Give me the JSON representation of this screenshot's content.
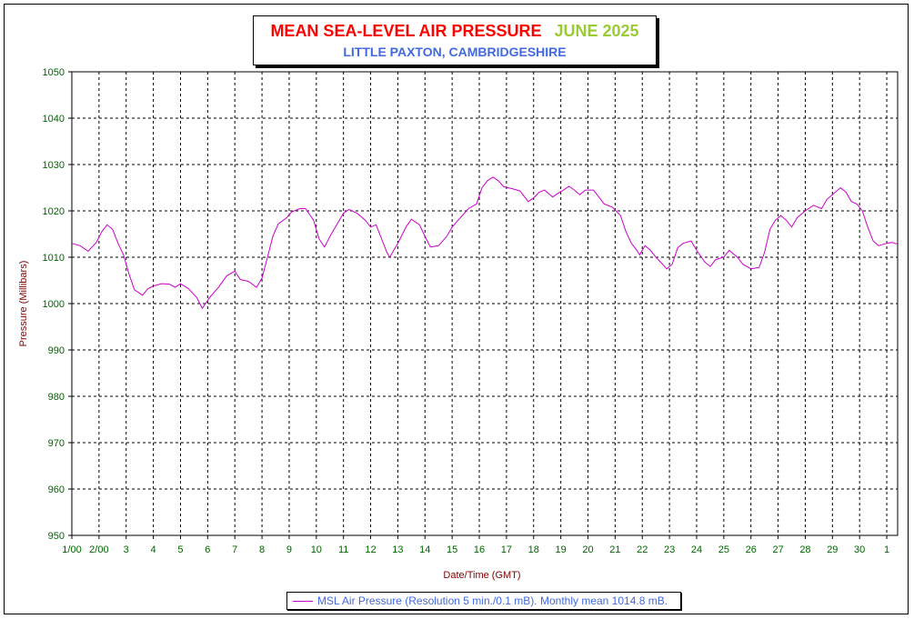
{
  "chart_data": {
    "type": "line",
    "title": "MEAN SEA-LEVEL AIR PRESSURE",
    "title_period": "JUNE 2025",
    "subtitle": "LITTLE PAXTON, CAMBRIDGESHIRE",
    "xlabel": "Date/Time (GMT)",
    "ylabel": "Pressure (Millibars)",
    "ylim": [
      950,
      1050
    ],
    "yticks": [
      950,
      960,
      970,
      980,
      990,
      1000,
      1010,
      1020,
      1030,
      1040,
      1050
    ],
    "xlim": [
      0,
      30.4
    ],
    "xticks": [
      {
        "x": 0,
        "label": "1/00"
      },
      {
        "x": 1,
        "label": "2/00"
      },
      {
        "x": 2,
        "label": "3"
      },
      {
        "x": 3,
        "label": "4"
      },
      {
        "x": 4,
        "label": "5"
      },
      {
        "x": 5,
        "label": "6"
      },
      {
        "x": 6,
        "label": "7"
      },
      {
        "x": 7,
        "label": "8"
      },
      {
        "x": 8,
        "label": "9"
      },
      {
        "x": 9,
        "label": "10"
      },
      {
        "x": 10,
        "label": "11"
      },
      {
        "x": 11,
        "label": "12"
      },
      {
        "x": 12,
        "label": "13"
      },
      {
        "x": 13,
        "label": "14"
      },
      {
        "x": 14,
        "label": "15"
      },
      {
        "x": 15,
        "label": "16"
      },
      {
        "x": 16,
        "label": "17"
      },
      {
        "x": 17,
        "label": "18"
      },
      {
        "x": 18,
        "label": "19"
      },
      {
        "x": 19,
        "label": "20"
      },
      {
        "x": 20,
        "label": "21"
      },
      {
        "x": 21,
        "label": "22"
      },
      {
        "x": 22,
        "label": "23"
      },
      {
        "x": 23,
        "label": "24"
      },
      {
        "x": 24,
        "label": "25"
      },
      {
        "x": 25,
        "label": "26"
      },
      {
        "x": 26,
        "label": "27"
      },
      {
        "x": 27,
        "label": "28"
      },
      {
        "x": 28,
        "label": "29"
      },
      {
        "x": 29,
        "label": "30"
      },
      {
        "x": 30,
        "label": "1"
      }
    ],
    "grid": true,
    "legend_position": "bottom-center",
    "series": [
      {
        "name": "MSL Air Pressure (Resolution 5 min./0.1 mB). Monthly mean 1014.8 mB.",
        "color": "#cc00cc",
        "points": [
          [
            0.0,
            1013.0
          ],
          [
            0.3,
            1012.5
          ],
          [
            0.6,
            1011.3
          ],
          [
            0.9,
            1013.2
          ],
          [
            1.1,
            1015.5
          ],
          [
            1.3,
            1017.0
          ],
          [
            1.5,
            1016.0
          ],
          [
            1.7,
            1013.0
          ],
          [
            1.9,
            1010.5
          ],
          [
            2.1,
            1006.5
          ],
          [
            2.3,
            1003.0
          ],
          [
            2.6,
            1001.8
          ],
          [
            2.8,
            1003.2
          ],
          [
            3.0,
            1003.8
          ],
          [
            3.3,
            1004.3
          ],
          [
            3.6,
            1004.2
          ],
          [
            3.8,
            1003.5
          ],
          [
            4.0,
            1004.3
          ],
          [
            4.3,
            1003.2
          ],
          [
            4.6,
            1001.3
          ],
          [
            4.8,
            999.0
          ],
          [
            5.1,
            1001.5
          ],
          [
            5.4,
            1003.5
          ],
          [
            5.7,
            1006.0
          ],
          [
            6.0,
            1007.0
          ],
          [
            6.2,
            1005.2
          ],
          [
            6.5,
            1004.8
          ],
          [
            6.8,
            1003.5
          ],
          [
            7.0,
            1005.5
          ],
          [
            7.2,
            1010.0
          ],
          [
            7.4,
            1014.5
          ],
          [
            7.6,
            1017.2
          ],
          [
            7.9,
            1018.5
          ],
          [
            8.1,
            1019.8
          ],
          [
            8.4,
            1020.5
          ],
          [
            8.6,
            1020.5
          ],
          [
            8.9,
            1018.0
          ],
          [
            9.1,
            1014.0
          ],
          [
            9.3,
            1012.2
          ],
          [
            9.5,
            1014.5
          ],
          [
            9.8,
            1017.5
          ],
          [
            10.0,
            1019.5
          ],
          [
            10.2,
            1020.3
          ],
          [
            10.5,
            1019.5
          ],
          [
            10.8,
            1018.0
          ],
          [
            11.0,
            1016.5
          ],
          [
            11.2,
            1017.0
          ],
          [
            11.4,
            1014.0
          ],
          [
            11.6,
            1011.0
          ],
          [
            11.7,
            1010.0
          ],
          [
            12.0,
            1013.0
          ],
          [
            12.3,
            1016.5
          ],
          [
            12.5,
            1018.2
          ],
          [
            12.8,
            1017.0
          ],
          [
            13.0,
            1014.5
          ],
          [
            13.2,
            1012.2
          ],
          [
            13.5,
            1012.5
          ],
          [
            13.8,
            1014.5
          ],
          [
            14.0,
            1016.5
          ],
          [
            14.3,
            1018.5
          ],
          [
            14.6,
            1020.5
          ],
          [
            14.9,
            1021.5
          ],
          [
            15.1,
            1025.0
          ],
          [
            15.3,
            1026.5
          ],
          [
            15.5,
            1027.3
          ],
          [
            15.7,
            1026.5
          ],
          [
            15.9,
            1025.2
          ],
          [
            16.2,
            1024.8
          ],
          [
            16.5,
            1024.3
          ],
          [
            16.8,
            1022.0
          ],
          [
            17.0,
            1022.8
          ],
          [
            17.2,
            1024.0
          ],
          [
            17.4,
            1024.5
          ],
          [
            17.7,
            1023.0
          ],
          [
            17.9,
            1023.8
          ],
          [
            18.1,
            1024.5
          ],
          [
            18.3,
            1025.3
          ],
          [
            18.5,
            1024.5
          ],
          [
            18.7,
            1023.5
          ],
          [
            18.9,
            1024.5
          ],
          [
            19.2,
            1024.5
          ],
          [
            19.4,
            1023.0
          ],
          [
            19.6,
            1021.5
          ],
          [
            19.9,
            1020.8
          ],
          [
            20.2,
            1019.0
          ],
          [
            20.4,
            1015.5
          ],
          [
            20.6,
            1013.0
          ],
          [
            20.8,
            1011.5
          ],
          [
            20.9,
            1010.5
          ],
          [
            21.1,
            1012.5
          ],
          [
            21.3,
            1011.5
          ],
          [
            21.5,
            1010.0
          ],
          [
            21.7,
            1008.8
          ],
          [
            21.9,
            1007.5
          ],
          [
            22.1,
            1008.5
          ],
          [
            22.3,
            1012.0
          ],
          [
            22.5,
            1013.0
          ],
          [
            22.8,
            1013.5
          ],
          [
            23.0,
            1011.5
          ],
          [
            23.3,
            1009.0
          ],
          [
            23.5,
            1008.0
          ],
          [
            23.7,
            1009.5
          ],
          [
            24.0,
            1010.0
          ],
          [
            24.2,
            1011.5
          ],
          [
            24.5,
            1010.0
          ],
          [
            24.7,
            1008.5
          ],
          [
            25.0,
            1007.5
          ],
          [
            25.3,
            1007.8
          ],
          [
            25.5,
            1011.0
          ],
          [
            25.7,
            1016.0
          ],
          [
            25.9,
            1018.0
          ],
          [
            26.1,
            1019.0
          ],
          [
            26.3,
            1018.0
          ],
          [
            26.5,
            1016.5
          ],
          [
            26.7,
            1018.5
          ],
          [
            27.0,
            1020.0
          ],
          [
            27.3,
            1021.2
          ],
          [
            27.6,
            1020.5
          ],
          [
            27.8,
            1022.5
          ],
          [
            28.1,
            1024.0
          ],
          [
            28.3,
            1025.0
          ],
          [
            28.5,
            1024.0
          ],
          [
            28.7,
            1022.0
          ],
          [
            28.9,
            1021.5
          ],
          [
            29.1,
            1020.0
          ],
          [
            29.3,
            1016.5
          ],
          [
            29.5,
            1013.5
          ],
          [
            29.7,
            1012.5
          ],
          [
            30.0,
            1013.0
          ],
          [
            30.2,
            1013.2
          ],
          [
            30.4,
            1012.8
          ]
        ]
      }
    ]
  }
}
